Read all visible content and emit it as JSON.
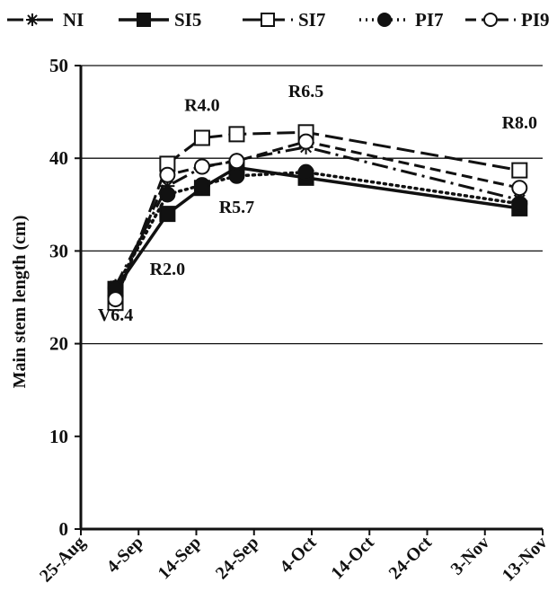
{
  "chart_data": {
    "type": "line",
    "title": "",
    "xlabel": "",
    "ylabel": "Main stem length (cm)",
    "ylim": [
      0,
      50
    ],
    "yticks": [
      0,
      10,
      20,
      30,
      40,
      50
    ],
    "y_gridlines": [
      20,
      30,
      40,
      50
    ],
    "xlim": [
      "25-Aug",
      "13-Nov"
    ],
    "xticks": [
      "25-Aug",
      "4-Sep",
      "14-Sep",
      "24-Sep",
      "4-Oct",
      "14-Oct",
      "24-Oct",
      "3-Nov",
      "13-Nov"
    ],
    "legend_position": "top",
    "x": [
      "31-Aug",
      "9-Sep",
      "15-Sep",
      "21-Sep",
      "3-Oct",
      "9-Nov"
    ],
    "series": [
      {
        "name": "NI",
        "marker": "asterisk",
        "dash": "dashdot",
        "values": [
          26.2,
          37.0,
          39.0,
          39.8,
          41.2,
          35.5
        ]
      },
      {
        "name": "SI5",
        "marker": "filled-square",
        "dash": "solid",
        "values": [
          25.9,
          34.0,
          36.8,
          39.0,
          37.9,
          34.6
        ]
      },
      {
        "name": "SI7",
        "marker": "open-square",
        "dash": "longdash",
        "values": [
          24.4,
          39.4,
          42.2,
          42.6,
          42.8,
          38.7
        ]
      },
      {
        "name": "PI7",
        "marker": "filled-circle",
        "dash": "dotted",
        "values": [
          26.0,
          36.1,
          37.1,
          38.1,
          38.5,
          35.1
        ]
      },
      {
        "name": "PI9",
        "marker": "open-circle",
        "dash": "dashed",
        "values": [
          24.8,
          38.2,
          39.1,
          39.7,
          41.8,
          36.8
        ]
      }
    ],
    "annotations": [
      {
        "text": "V6.4",
        "x": "31-Aug",
        "y": 22.5
      },
      {
        "text": "R2.0",
        "x": "9-Sep",
        "y": 27.4
      },
      {
        "text": "R4.0",
        "x": "15-Sep",
        "y": 45.1
      },
      {
        "text": "R5.7",
        "x": "21-Sep",
        "y": 34.1
      },
      {
        "text": "R6.5",
        "x": "3-Oct",
        "y": 46.6
      },
      {
        "text": "R8.0",
        "x": "9-Nov",
        "y": 43.2
      }
    ]
  }
}
